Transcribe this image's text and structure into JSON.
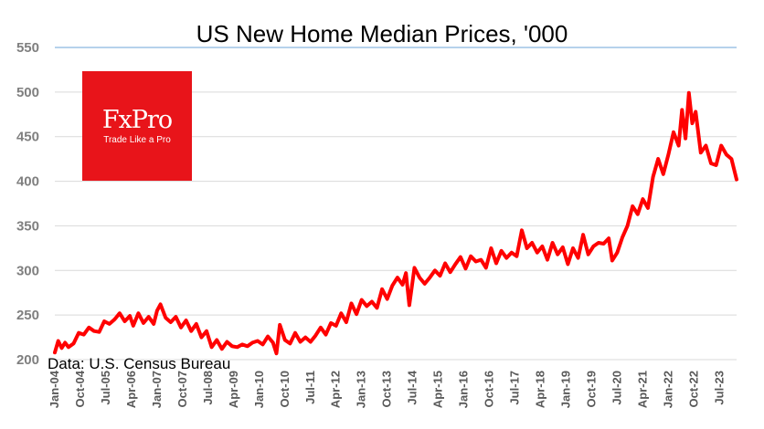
{
  "chart_data": {
    "type": "line",
    "title": "US New Home Median Prices, '000",
    "source": "Data: U.S. Census Bureau",
    "ylim": [
      200,
      550
    ],
    "yticks": [
      200,
      250,
      300,
      350,
      400,
      450,
      500,
      550
    ],
    "xlim": [
      2004.0,
      2024.0
    ],
    "xticks": [
      {
        "label": "Jan-04",
        "x": 2004.0
      },
      {
        "label": "Oct-04",
        "x": 2004.75
      },
      {
        "label": "Jul-05",
        "x": 2005.5
      },
      {
        "label": "Apr-06",
        "x": 2006.25
      },
      {
        "label": "Jan-07",
        "x": 2007.0
      },
      {
        "label": "Oct-07",
        "x": 2007.75
      },
      {
        "label": "Jul-08",
        "x": 2008.5
      },
      {
        "label": "Apr-09",
        "x": 2009.25
      },
      {
        "label": "Jan-10",
        "x": 2010.0
      },
      {
        "label": "Oct-10",
        "x": 2010.75
      },
      {
        "label": "Jul-11",
        "x": 2011.5
      },
      {
        "label": "Apr-12",
        "x": 2012.25
      },
      {
        "label": "Jan-13",
        "x": 2013.0
      },
      {
        "label": "Oct-13",
        "x": 2013.75
      },
      {
        "label": "Jul-14",
        "x": 2014.5
      },
      {
        "label": "Apr-15",
        "x": 2015.25
      },
      {
        "label": "Jan-16",
        "x": 2016.0
      },
      {
        "label": "Oct-16",
        "x": 2016.75
      },
      {
        "label": "Jul-17",
        "x": 2017.5
      },
      {
        "label": "Apr-18",
        "x": 2018.25
      },
      {
        "label": "Jan-19",
        "x": 2019.0
      },
      {
        "label": "Oct-19",
        "x": 2019.75
      },
      {
        "label": "Jul-20",
        "x": 2020.5
      },
      {
        "label": "Apr-21",
        "x": 2021.25
      },
      {
        "label": "Jan-22",
        "x": 2022.0
      },
      {
        "label": "Oct-22",
        "x": 2022.75
      },
      {
        "label": "Jul-23",
        "x": 2023.5
      }
    ],
    "grid": true,
    "series": [
      {
        "name": "US New Home Median Price",
        "color": "#ff0000",
        "x": [
          2004.0,
          2004.1,
          2004.2,
          2004.3,
          2004.4,
          2004.55,
          2004.7,
          2004.85,
          2005.0,
          2005.15,
          2005.3,
          2005.45,
          2005.6,
          2005.75,
          2005.9,
          2006.05,
          2006.2,
          2006.3,
          2006.45,
          2006.6,
          2006.75,
          2006.9,
          2007.0,
          2007.1,
          2007.25,
          2007.4,
          2007.55,
          2007.7,
          2007.85,
          2008.0,
          2008.15,
          2008.3,
          2008.45,
          2008.6,
          2008.75,
          2008.9,
          2009.05,
          2009.2,
          2009.35,
          2009.5,
          2009.65,
          2009.8,
          2009.95,
          2010.1,
          2010.25,
          2010.4,
          2010.5,
          2010.6,
          2010.75,
          2010.9,
          2011.05,
          2011.2,
          2011.35,
          2011.5,
          2011.65,
          2011.8,
          2011.95,
          2012.1,
          2012.25,
          2012.4,
          2012.55,
          2012.7,
          2012.85,
          2013.0,
          2013.15,
          2013.3,
          2013.45,
          2013.6,
          2013.75,
          2013.9,
          2014.05,
          2014.2,
          2014.3,
          2014.4,
          2014.55,
          2014.7,
          2014.85,
          2015.0,
          2015.15,
          2015.3,
          2015.45,
          2015.6,
          2015.75,
          2015.9,
          2016.05,
          2016.2,
          2016.35,
          2016.5,
          2016.65,
          2016.8,
          2016.95,
          2017.1,
          2017.25,
          2017.4,
          2017.55,
          2017.7,
          2017.85,
          2018.0,
          2018.15,
          2018.3,
          2018.45,
          2018.6,
          2018.75,
          2018.9,
          2019.05,
          2019.2,
          2019.35,
          2019.5,
          2019.65,
          2019.8,
          2019.95,
          2020.1,
          2020.25,
          2020.35,
          2020.5,
          2020.65,
          2020.8,
          2020.95,
          2021.1,
          2021.25,
          2021.4,
          2021.55,
          2021.7,
          2021.85,
          2022.0,
          2022.15,
          2022.3,
          2022.4,
          2022.5,
          2022.6,
          2022.7,
          2022.8,
          2022.95,
          2023.1,
          2023.25,
          2023.4,
          2023.55,
          2023.7,
          2023.85,
          2024.0
        ],
        "y": [
          208,
          221,
          213,
          219,
          214,
          218,
          230,
          228,
          236,
          232,
          231,
          243,
          240,
          245,
          252,
          243,
          249,
          238,
          252,
          241,
          248,
          240,
          255,
          262,
          247,
          242,
          248,
          236,
          244,
          232,
          240,
          225,
          232,
          214,
          222,
          212,
          220,
          215,
          214,
          217,
          215,
          219,
          221,
          217,
          226,
          219,
          207,
          239,
          222,
          218,
          230,
          220,
          225,
          220,
          227,
          236,
          228,
          241,
          238,
          252,
          242,
          263,
          251,
          267,
          260,
          265,
          258,
          279,
          268,
          283,
          292,
          284,
          297,
          261,
          303,
          292,
          285,
          292,
          300,
          294,
          308,
          298,
          307,
          315,
          302,
          316,
          310,
          312,
          303,
          325,
          308,
          322,
          314,
          320,
          316,
          345,
          325,
          331,
          320,
          327,
          312,
          331,
          318,
          326,
          307,
          325,
          314,
          340,
          318,
          327,
          331,
          330,
          336,
          311,
          320,
          337,
          350,
          372,
          363,
          380,
          370,
          405,
          425,
          408,
          430,
          455,
          440,
          480,
          448,
          499,
          465,
          478,
          432,
          440,
          420,
          418,
          440,
          430,
          425,
          402
        ]
      }
    ]
  },
  "logo": {
    "brand": "FxPro",
    "tagline": "Trade Like a Pro",
    "color": "#e8141a"
  }
}
